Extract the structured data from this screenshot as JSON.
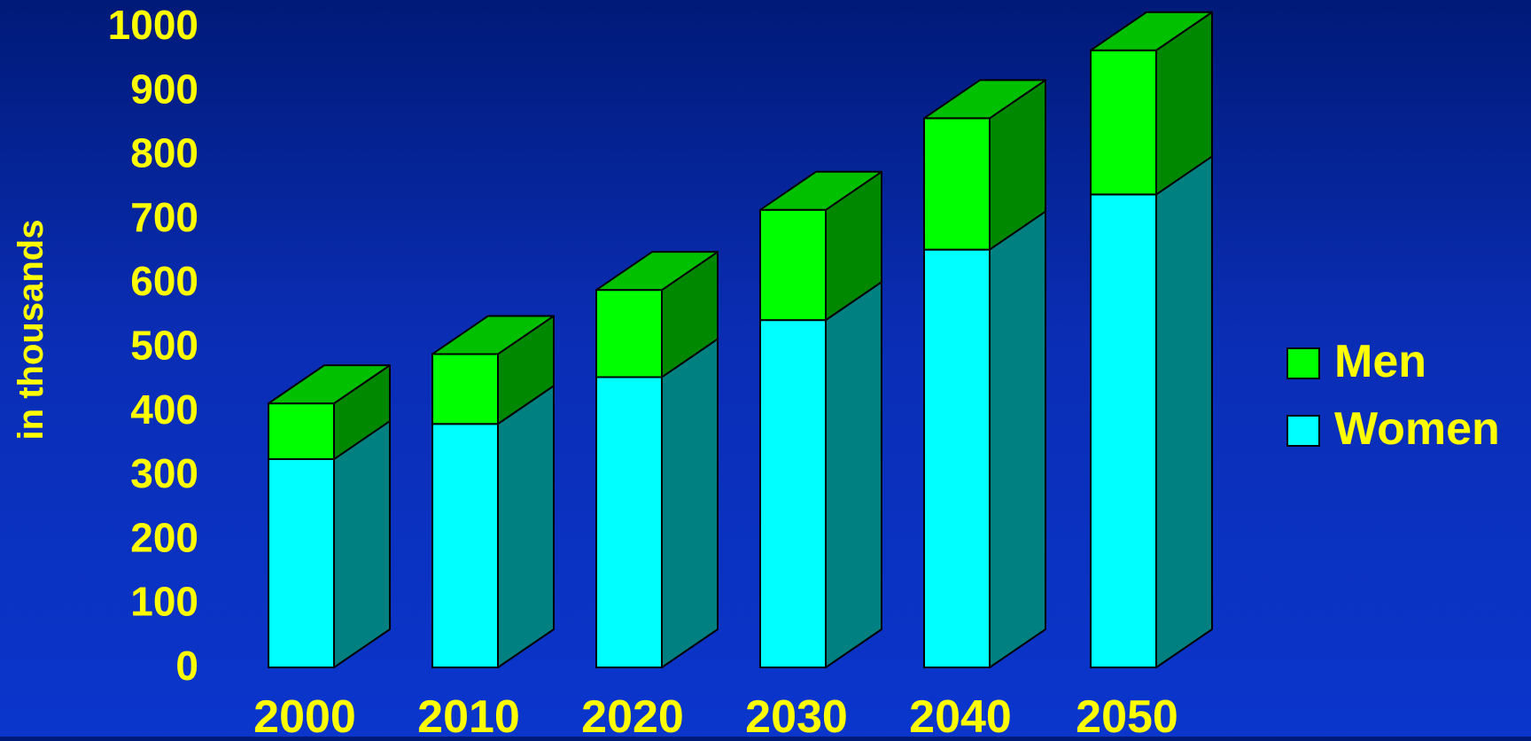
{
  "chart_data": {
    "type": "bar",
    "stacked": true,
    "three_d": true,
    "title": "",
    "xlabel": "",
    "ylabel": "in thousands",
    "ylim": [
      0,
      1000
    ],
    "yticks": [
      "0",
      "100",
      "200",
      "300",
      "400",
      "500",
      "600",
      "700",
      "800",
      "900",
      "1000"
    ],
    "categories": [
      "2000",
      "2010",
      "2020",
      "2030",
      "2040",
      "2050"
    ],
    "series": [
      {
        "name": "Women",
        "values": [
          325,
          380,
          453,
          542,
          652,
          738
        ]
      },
      {
        "name": "Men",
        "values": [
          87,
          109,
          136,
          172,
          205,
          225
        ]
      }
    ],
    "legend": {
      "placement": "right",
      "items": [
        "Men",
        "Women"
      ]
    },
    "grid": false
  },
  "colors": {
    "text": "#ffff00",
    "women_front": "#00ffff",
    "women_side": "#008080",
    "men_front": "#00ff00",
    "men_side": "#008800",
    "men_top": "#00c000",
    "outline": "#000000"
  }
}
